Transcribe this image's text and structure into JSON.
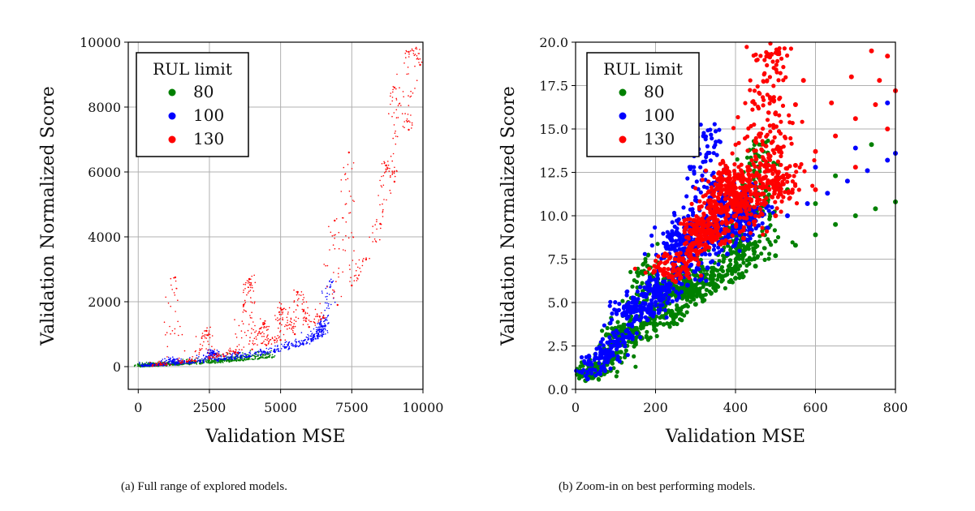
{
  "figure": {
    "captions": [
      "(a) Full range of explored models.",
      "(b) Zoom-in on best performing models."
    ]
  },
  "chart_data": [
    {
      "type": "scatter",
      "xlabel": "Validation MSE",
      "ylabel": "Validation Normalized Score",
      "xlim": [
        -350,
        10000
      ],
      "ylim": [
        -700,
        10000
      ],
      "xticks": [
        0,
        2500,
        5000,
        7500,
        10000
      ],
      "yticks": [
        0,
        2000,
        4000,
        6000,
        8000,
        10000
      ],
      "grid": true,
      "legend": {
        "title": "RUL limit",
        "placement": "top-left",
        "entries": [
          "80",
          "100",
          "130"
        ]
      },
      "series": [
        {
          "name": "80",
          "color": "#008000",
          "points": [
            [
              80,
              0
            ],
            [
              200,
              5
            ],
            [
              400,
              10
            ],
            [
              700,
              20
            ],
            [
              1000,
              35
            ],
            [
              1400,
              50
            ],
            [
              1800,
              70
            ],
            [
              2200,
              90
            ],
            [
              2700,
              115
            ],
            [
              3200,
              150
            ],
            [
              3700,
              190
            ],
            [
              4200,
              235
            ],
            [
              4700,
              280
            ]
          ]
        },
        {
          "name": "100",
          "color": "#0000ff",
          "points": [
            [
              150,
              5
            ],
            [
              500,
              20
            ],
            [
              900,
              40
            ],
            [
              1300,
              60
            ],
            [
              1800,
              95
            ],
            [
              2300,
              135
            ],
            [
              2800,
              175
            ],
            [
              3300,
              230
            ],
            [
              3800,
              290
            ],
            [
              4300,
              360
            ],
            [
              4800,
              450
            ],
            [
              5300,
              560
            ],
            [
              5800,
              680
            ],
            [
              6100,
              800
            ],
            [
              6300,
              930
            ],
            [
              6450,
              1100
            ],
            [
              6550,
              1250
            ],
            [
              1200,
              180
            ],
            [
              2600,
              420
            ],
            [
              6800,
              2600
            ]
          ]
        },
        {
          "name": "130",
          "color": "#ff0000",
          "points": [
            [
              500,
              20
            ],
            [
              1000,
              60
            ],
            [
              1500,
              110
            ],
            [
              2000,
              170
            ],
            [
              2500,
              240
            ],
            [
              3000,
              320
            ],
            [
              3500,
              420
            ],
            [
              4000,
              530
            ],
            [
              4500,
              660
            ],
            [
              5000,
              820
            ],
            [
              5500,
              1000
            ],
            [
              6000,
              1220
            ],
            [
              6500,
              1500
            ],
            [
              7000,
              1900
            ],
            [
              7500,
              2500
            ],
            [
              8000,
              3300
            ],
            [
              8500,
              4400
            ],
            [
              9000,
              5700
            ],
            [
              9500,
              7300
            ],
            [
              9900,
              9300
            ],
            [
              1300,
              2750
            ],
            [
              3900,
              2700
            ],
            [
              5000,
              1800
            ],
            [
              2400,
              1100
            ],
            [
              7400,
              6600
            ],
            [
              9500,
              9700
            ],
            [
              9000,
              8600
            ],
            [
              8700,
              6200
            ],
            [
              6900,
              4500
            ],
            [
              5600,
              2300
            ],
            [
              4400,
              1300
            ],
            [
              3700,
              1900
            ]
          ]
        }
      ]
    },
    {
      "type": "scatter",
      "xlabel": "Validation MSE",
      "ylabel": "Validation Normalized Score",
      "xlim": [
        0,
        800
      ],
      "ylim": [
        0,
        20
      ],
      "xticks": [
        0,
        200,
        400,
        600,
        800
      ],
      "yticks": [
        "0.0",
        "2.5",
        "5.0",
        "7.5",
        "10.0",
        "12.5",
        "15.0",
        "17.5",
        "20.0"
      ],
      "grid": true,
      "legend": {
        "title": "RUL limit",
        "placement": "top-left",
        "entries": [
          "80",
          "100",
          "130"
        ]
      },
      "series": [
        {
          "name": "80",
          "color": "#008000",
          "points": [
            [
              25,
              0.5
            ],
            [
              50,
              0.9
            ],
            [
              100,
              1.8
            ],
            [
              150,
              2.6
            ],
            [
              200,
              3.4
            ],
            [
              250,
              4.2
            ],
            [
              300,
              4.9
            ],
            [
              350,
              5.7
            ],
            [
              400,
              6.4
            ],
            [
              450,
              7.1
            ],
            [
              500,
              7.7
            ],
            [
              550,
              8.3
            ],
            [
              600,
              8.9
            ],
            [
              650,
              9.5
            ],
            [
              700,
              10.0
            ],
            [
              750,
              10.4
            ],
            [
              800,
              10.8
            ],
            [
              180,
              7.1
            ],
            [
              450,
              13.6
            ],
            [
              530,
              11.5
            ],
            [
              650,
              12.3
            ],
            [
              740,
              14.1
            ],
            [
              300,
              6.0
            ],
            [
              400,
              8.5
            ],
            [
              600,
              10.7
            ],
            [
              120,
              3.3
            ],
            [
              250,
              5.6
            ]
          ]
        },
        {
          "name": "100",
          "color": "#0000ff",
          "points": [
            [
              30,
              0.6
            ],
            [
              80,
              1.8
            ],
            [
              130,
              3.0
            ],
            [
              180,
              4.0
            ],
            [
              230,
              5.0
            ],
            [
              280,
              6.0
            ],
            [
              330,
              7.0
            ],
            [
              380,
              7.8
            ],
            [
              430,
              8.6
            ],
            [
              480,
              9.3
            ],
            [
              530,
              10.0
            ],
            [
              580,
              10.7
            ],
            [
              630,
              11.3
            ],
            [
              680,
              12.0
            ],
            [
              730,
              12.6
            ],
            [
              780,
              13.2
            ],
            [
              800,
              13.6
            ],
            [
              320,
              14.6
            ],
            [
              360,
              11.4
            ],
            [
              250,
              8.3
            ],
            [
              270,
              8.1
            ],
            [
              130,
              4.5
            ],
            [
              420,
              9.8
            ],
            [
              510,
              11.6
            ],
            [
              600,
              12.8
            ],
            [
              700,
              13.9
            ],
            [
              780,
              16.5
            ],
            [
              200,
              5.6
            ],
            [
              450,
              10.4
            ]
          ]
        },
        {
          "name": "130",
          "color": "#ff0000",
          "points": [
            [
              220,
              6.8
            ],
            [
              250,
              6.2
            ],
            [
              300,
              7.5
            ],
            [
              350,
              8.8
            ],
            [
              400,
              10.0
            ],
            [
              450,
              11.2
            ],
            [
              500,
              12.0
            ],
            [
              550,
              12.9
            ],
            [
              600,
              13.7
            ],
            [
              650,
              14.6
            ],
            [
              700,
              15.6
            ],
            [
              750,
              16.4
            ],
            [
              800,
              17.2
            ],
            [
              490,
              19.3
            ],
            [
              740,
              19.5
            ],
            [
              780,
              19.2
            ],
            [
              640,
              16.5
            ],
            [
              570,
              17.8
            ],
            [
              450,
              14.3
            ],
            [
              380,
              12.0
            ],
            [
              300,
              9.2
            ],
            [
              500,
              10.0
            ],
            [
              600,
              11.5
            ],
            [
              700,
              12.8
            ],
            [
              780,
              15.0
            ],
            [
              420,
              8.7
            ],
            [
              550,
              16.4
            ],
            [
              690,
              18.0
            ],
            [
              760,
              17.8
            ],
            [
              400,
              11.6
            ],
            [
              350,
              10.2
            ],
            [
              330,
              8.2
            ]
          ]
        }
      ]
    }
  ]
}
